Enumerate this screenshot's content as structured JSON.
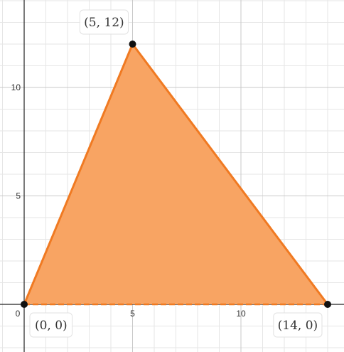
{
  "chart_data": {
    "type": "polygon",
    "title": "",
    "xlabel": "",
    "ylabel": "",
    "xlim": [
      -0.1,
      14.9
    ],
    "ylim": [
      -2.2,
      13.8
    ],
    "grid": true,
    "x_ticks": [
      0,
      5,
      10
    ],
    "y_ticks": [
      5,
      10
    ],
    "polygon": {
      "vertices": [
        [
          0,
          0
        ],
        [
          5,
          12
        ],
        [
          14,
          0
        ]
      ],
      "fill_color": "#f8a463",
      "stroke_color": "#f07a22",
      "bottom_edge_style": "dashed"
    },
    "points": [
      {
        "x": 0,
        "y": 0,
        "label": "(0, 0)",
        "label_position": "below-right"
      },
      {
        "x": 5,
        "y": 12,
        "label": "(5, 12)",
        "label_position": "above-left"
      },
      {
        "x": 14,
        "y": 0,
        "label": "(14, 0)",
        "label_position": "below-left"
      }
    ],
    "colors": {
      "minor_grid": "#e6e6e6",
      "major_grid": "#c8c8c8",
      "axis": "#222222",
      "point": "#111111"
    }
  }
}
